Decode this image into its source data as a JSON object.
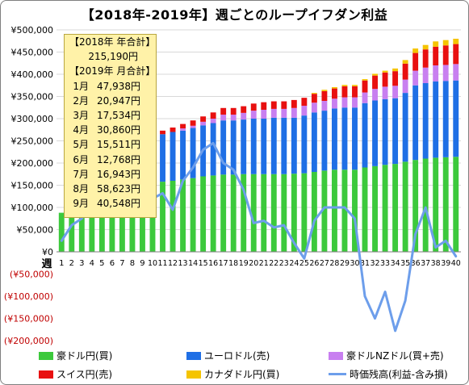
{
  "title": "【2018年-2019年】週ごとのループイフダン利益",
  "chart_data": {
    "type": "bar",
    "stacked": true,
    "xlabel": "週",
    "categories": [
      "1",
      "2",
      "3",
      "4",
      "5",
      "6",
      "7",
      "8",
      "9",
      "10",
      "11",
      "12",
      "13",
      "14",
      "15",
      "16",
      "17",
      "18",
      "19",
      "20",
      "21",
      "22",
      "23",
      "24",
      "25",
      "26",
      "27",
      "28",
      "29",
      "30",
      "31",
      "32",
      "33",
      "34",
      "35",
      "36",
      "37",
      "38",
      "39",
      "40"
    ],
    "ylim": [
      -200000,
      500000
    ],
    "yticks": [
      {
        "value": 500000,
        "label": "¥500,000"
      },
      {
        "value": 450000,
        "label": "¥450,000"
      },
      {
        "value": 400000,
        "label": "¥400,000"
      },
      {
        "value": 350000,
        "label": "¥350,000"
      },
      {
        "value": 300000,
        "label": "¥300,000"
      },
      {
        "value": 250000,
        "label": "¥250,000"
      },
      {
        "value": 200000,
        "label": "¥200,000"
      },
      {
        "value": 150000,
        "label": "¥150,000"
      },
      {
        "value": 100000,
        "label": "¥100,000"
      },
      {
        "value": 50000,
        "label": "¥50,000"
      },
      {
        "value": 0,
        "label": "¥0"
      },
      {
        "value": -50000,
        "label": "(¥50,000)"
      },
      {
        "value": -100000,
        "label": "(¥100,000)"
      },
      {
        "value": -150000,
        "label": "(¥150,000)"
      },
      {
        "value": -200000,
        "label": "(¥200,000)"
      }
    ],
    "grid": true,
    "legend_position": "bottom",
    "series": [
      {
        "name": "豪ドル円(買)",
        "kind": "bar",
        "color": "#3cc93c",
        "values": [
          88000,
          95000,
          100000,
          104000,
          107000,
          110000,
          114000,
          117000,
          120000,
          125000,
          158000,
          160000,
          163000,
          166000,
          170000,
          172000,
          174000,
          174000,
          175000,
          175000,
          175000,
          175000,
          175000,
          176000,
          177000,
          180000,
          183000,
          185000,
          185000,
          185000,
          190000,
          193000,
          196000,
          198000,
          203000,
          207000,
          210000,
          212000,
          213000,
          214000
        ]
      },
      {
        "name": "ユーロドル(売)",
        "kind": "bar",
        "color": "#1f6fe5",
        "values": [
          0,
          0,
          0,
          0,
          0,
          0,
          0,
          0,
          0,
          0,
          107000,
          110000,
          110000,
          113000,
          115000,
          118000,
          122000,
          122000,
          123000,
          125000,
          125000,
          127000,
          127000,
          126000,
          130000,
          134000,
          135000,
          138000,
          140000,
          140000,
          145000,
          148000,
          148000,
          148000,
          155000,
          168000,
          170000,
          172000,
          172000,
          172000
        ]
      },
      {
        "name": "豪ドルNZドル(買+売)",
        "kind": "bar",
        "color": "#c87ff0",
        "values": [
          0,
          0,
          0,
          0,
          0,
          0,
          0,
          0,
          0,
          0,
          0,
          0,
          5000,
          5000,
          8000,
          10000,
          13000,
          13000,
          15000,
          18000,
          20000,
          20000,
          20000,
          22000,
          22000,
          22000,
          22000,
          22000,
          23000,
          23000,
          24000,
          26000,
          28000,
          28000,
          30000,
          33000,
          35000,
          36000,
          36000,
          37000
        ]
      },
      {
        "name": "スイス円(売)",
        "kind": "bar",
        "color": "#e81010",
        "values": [
          0,
          0,
          0,
          0,
          0,
          0,
          0,
          0,
          0,
          0,
          8000,
          10000,
          10000,
          12000,
          12000,
          14000,
          15000,
          15000,
          15000,
          16000,
          17000,
          17000,
          17000,
          18000,
          18000,
          20000,
          22000,
          23000,
          25000,
          25000,
          27000,
          30000,
          32000,
          33000,
          36000,
          40000,
          41000,
          42000,
          44000,
          45000
        ]
      },
      {
        "name": "カナダドル円(買)",
        "kind": "bar",
        "color": "#f5c400",
        "values": [
          0,
          0,
          0,
          0,
          0,
          0,
          0,
          0,
          0,
          0,
          0,
          0,
          0,
          0,
          0,
          0,
          0,
          0,
          0,
          0,
          0,
          0,
          0,
          0,
          0,
          2000,
          3000,
          3000,
          3000,
          3000,
          3000,
          4000,
          4000,
          6000,
          8000,
          10000,
          10000,
          12000,
          12000,
          12000
        ]
      },
      {
        "name": "時価残高(利益-含み損)",
        "kind": "line",
        "color": "#6d9eeb",
        "values": [
          25000,
          60000,
          75000,
          120000,
          150000,
          160000,
          110000,
          90000,
          110000,
          120000,
          132000,
          95000,
          160000,
          190000,
          230000,
          245000,
          200000,
          185000,
          140000,
          65000,
          70000,
          55000,
          60000,
          20000,
          -15000,
          70000,
          100000,
          100000,
          100000,
          75000,
          -100000,
          -150000,
          -90000,
          -178000,
          -110000,
          40000,
          100000,
          10000,
          25000,
          -10000
        ]
      }
    ]
  },
  "info_box": {
    "header_2018": "【2018年 年合計】",
    "total_2018": "215,190円",
    "header_2019": "【2019年 月合計】",
    "months": [
      {
        "label": "1月",
        "value": "47,938円"
      },
      {
        "label": "2月",
        "value": "20,947円"
      },
      {
        "label": "3月",
        "value": "17,534円"
      },
      {
        "label": "4月",
        "value": "30,860円"
      },
      {
        "label": "5月",
        "value": "15,511円"
      },
      {
        "label": "6月",
        "value": "12,768円"
      },
      {
        "label": "7月",
        "value": "16,943円"
      },
      {
        "label": "8月",
        "value": "58,623円"
      },
      {
        "label": "9月",
        "value": "40,548円"
      }
    ]
  },
  "colors": {
    "negative_label": "#c00000",
    "gridline": "#d9d9d9"
  }
}
